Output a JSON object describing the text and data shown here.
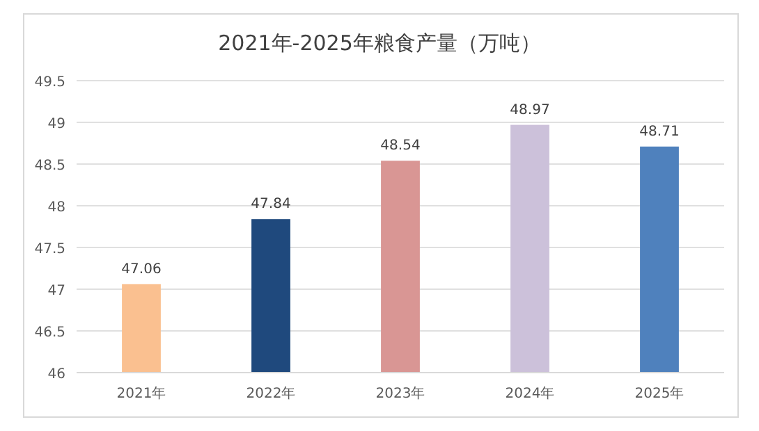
{
  "chart_data": {
    "type": "bar",
    "title": "2021年-2025年粮食产量（万吨）",
    "categories": [
      "2021年",
      "2022年",
      "2023年",
      "2024年",
      "2025年"
    ],
    "values": [
      47.06,
      47.84,
      48.54,
      48.97,
      48.71
    ],
    "colors": [
      "#fac090",
      "#1f497d",
      "#d99694",
      "#ccc1da",
      "#4f81bd"
    ],
    "ylim": [
      46,
      49.5
    ],
    "yticks": [
      46,
      46.5,
      47,
      47.5,
      48,
      48.5,
      49,
      49.5
    ],
    "grid": "y",
    "data_labels": true
  }
}
